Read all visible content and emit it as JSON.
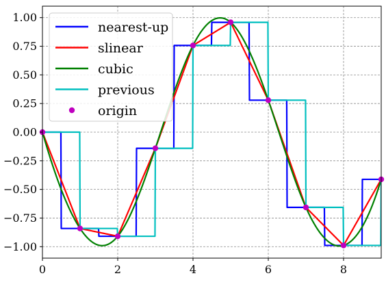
{
  "chart_data": {
    "type": "line",
    "title": "",
    "xlabel": "",
    "ylabel": "",
    "xlim": [
      0,
      9
    ],
    "ylim": [
      -1.1,
      1.1
    ],
    "grid": true,
    "grid_style": "dashed",
    "legend_placement": "top-left",
    "x_ticks": [
      0,
      2,
      4,
      6,
      8
    ],
    "x_tick_labels": [
      "0",
      "2",
      "4",
      "6",
      "8"
    ],
    "y_ticks": [
      1.0,
      0.75,
      0.5,
      0.25,
      0.0,
      -0.25,
      -0.5,
      -0.75,
      -1.0
    ],
    "y_tick_labels": [
      "1.00",
      "0.75",
      "0.50",
      "0.25",
      "0.00",
      "−0.25",
      "−0.50",
      "−0.75",
      "−1.00"
    ],
    "origin_x": [
      0,
      1,
      2,
      3,
      4,
      5,
      6,
      7,
      8,
      9
    ],
    "origin_y": [
      0.0,
      -0.841,
      -0.909,
      -0.141,
      0.757,
      0.959,
      0.279,
      -0.657,
      -0.989,
      -0.412
    ],
    "series": [
      {
        "name": "nearest-up",
        "color": "#0000ff",
        "style": "line",
        "interp": "nearest-up"
      },
      {
        "name": "slinear",
        "color": "#ff0000",
        "style": "line",
        "interp": "linear"
      },
      {
        "name": "cubic",
        "color": "#008000",
        "style": "line",
        "interp": "cubic"
      },
      {
        "name": "previous",
        "color": "#00bfbf",
        "style": "line",
        "interp": "previous"
      },
      {
        "name": "origin",
        "color": "#bf00bf",
        "style": "markers",
        "interp": "none"
      }
    ]
  }
}
